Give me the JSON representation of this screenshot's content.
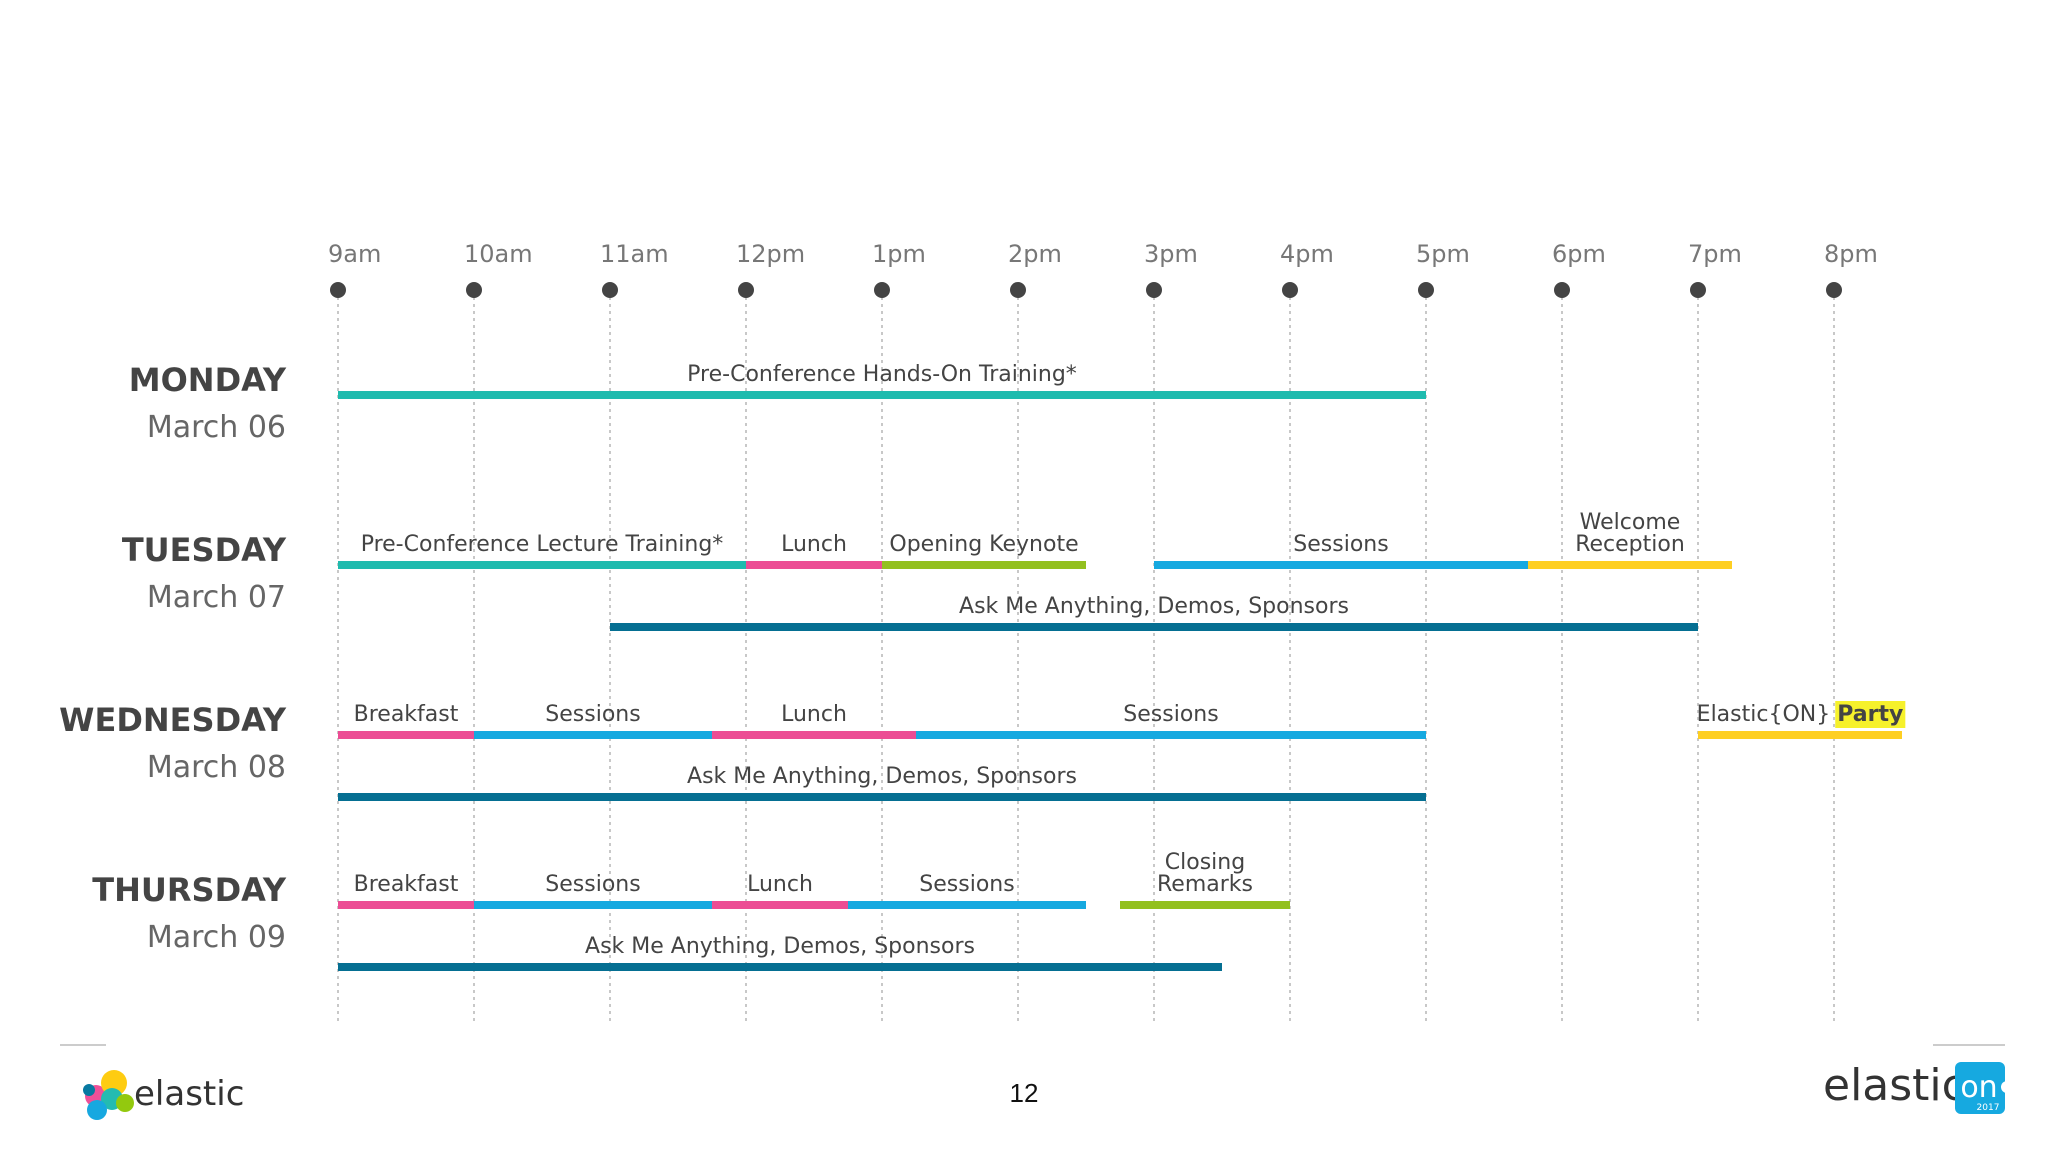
{
  "schedule": {
    "hours": [
      "9am",
      "10am",
      "11am",
      "12pm",
      "1pm",
      "2pm",
      "3pm",
      "4pm",
      "5pm",
      "6pm",
      "7pm",
      "8pm"
    ],
    "days": [
      {
        "name": "MONDAY",
        "date": "March 06",
        "events": [
          {
            "lines": [
              "Pre-Conference Hands-On Training*"
            ],
            "start": 9.0,
            "end": 17.0,
            "row": 0,
            "color": "teal"
          }
        ]
      },
      {
        "name": "TUESDAY",
        "date": "March 07",
        "events": [
          {
            "lines": [
              "Pre-Conference Lecture Training*"
            ],
            "start": 9.0,
            "end": 12.0,
            "row": 0,
            "color": "teal"
          },
          {
            "lines": [
              "Lunch"
            ],
            "start": 12.0,
            "end": 13.0,
            "row": 0,
            "color": "pink"
          },
          {
            "lines": [
              "Opening Keynote"
            ],
            "start": 13.0,
            "end": 14.5,
            "row": 0,
            "color": "green"
          },
          {
            "lines": [
              "Sessions"
            ],
            "start": 15.0,
            "end": 17.75,
            "row": 0,
            "color": "blue"
          },
          {
            "lines": [
              "Welcome",
              "Reception"
            ],
            "start": 17.75,
            "end": 19.25,
            "row": 0,
            "color": "yellow"
          },
          {
            "lines": [
              "Ask Me Anything, Demos, Sponsors"
            ],
            "start": 11.0,
            "end": 19.0,
            "row": 1,
            "color": "darkblue"
          }
        ]
      },
      {
        "name": "WEDNESDAY",
        "date": "March 08",
        "events": [
          {
            "lines": [
              "Breakfast"
            ],
            "start": 9.0,
            "end": 10.0,
            "row": 0,
            "color": "pink"
          },
          {
            "lines": [
              "Sessions"
            ],
            "start": 10.0,
            "end": 11.75,
            "row": 0,
            "color": "blue"
          },
          {
            "lines": [
              "Lunch"
            ],
            "start": 11.75,
            "end": 13.25,
            "row": 0,
            "color": "pink"
          },
          {
            "lines": [
              "Sessions"
            ],
            "start": 13.25,
            "end": 17.0,
            "row": 0,
            "color": "blue"
          },
          {
            "lines": [
              "Elastic{ON} Party"
            ],
            "start": 19.0,
            "end": 20.5,
            "row": 0,
            "color": "yellow",
            "highlight": "Party"
          },
          {
            "lines": [
              "Ask Me Anything, Demos, Sponsors"
            ],
            "start": 9.0,
            "end": 17.0,
            "row": 1,
            "color": "darkblue"
          }
        ]
      },
      {
        "name": "THURSDAY",
        "date": "March 09",
        "events": [
          {
            "lines": [
              "Breakfast"
            ],
            "start": 9.0,
            "end": 10.0,
            "row": 0,
            "color": "pink"
          },
          {
            "lines": [
              "Sessions"
            ],
            "start": 10.0,
            "end": 11.75,
            "row": 0,
            "color": "blue"
          },
          {
            "lines": [
              "Lunch"
            ],
            "start": 11.75,
            "end": 12.75,
            "row": 0,
            "color": "pink"
          },
          {
            "lines": [
              "Sessions"
            ],
            "start": 12.75,
            "end": 14.5,
            "row": 0,
            "color": "blue"
          },
          {
            "lines": [
              "Closing",
              "Remarks"
            ],
            "start": 14.75,
            "end": 16.0,
            "row": 0,
            "color": "green"
          },
          {
            "lines": [
              "Ask Me Anything, Demos, Sponsors"
            ],
            "start": 9.0,
            "end": 15.5,
            "row": 1,
            "color": "darkblue"
          }
        ]
      }
    ]
  },
  "colors": {
    "teal": "#1fbbae",
    "pink": "#ec4d94",
    "green": "#93c01f",
    "blue": "#16a9e0",
    "yellow": "#fecf23",
    "darkblue": "#056f92",
    "party_highlight": "#f6f12b",
    "dot": "#444444",
    "grid": "#c8c8c8"
  },
  "footer": {
    "page_number": "12",
    "left_logo_text": "elastic",
    "right_logo_text": "elastic",
    "right_logo_badge": "on",
    "right_logo_year": "2017"
  }
}
